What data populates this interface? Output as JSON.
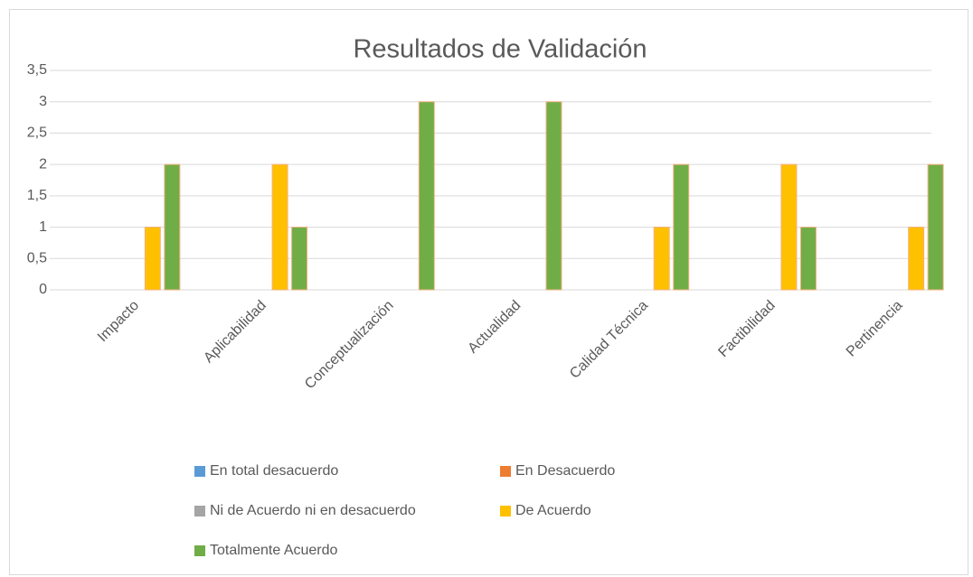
{
  "chart_data": {
    "type": "bar",
    "title": "Resultados de Validación",
    "categories": [
      "Impacto",
      "Aplicabilidad",
      "Conceptualización",
      "Actualidad",
      "Calidad Técnica",
      "Factibilidad",
      "Pertinencia"
    ],
    "series": [
      {
        "name": "En total desacuerdo",
        "color": "#5b9bd5",
        "values": [
          0,
          0,
          0,
          0,
          0,
          0,
          0
        ]
      },
      {
        "name": "En Desacuerdo",
        "color": "#ed7d31",
        "values": [
          0,
          0,
          0,
          0,
          0,
          0,
          0
        ]
      },
      {
        "name": "Ni de Acuerdo ni en desacuerdo",
        "color": "#a5a5a5",
        "values": [
          0,
          0,
          0,
          0,
          0,
          0,
          0
        ]
      },
      {
        "name": "De Acuerdo",
        "color": "#ffc000",
        "values": [
          1,
          2,
          0,
          0,
          1,
          2,
          1
        ]
      },
      {
        "name": "Totalmente Acuerdo",
        "color": "#70ad47",
        "values": [
          2,
          1,
          3,
          3,
          2,
          1,
          2
        ]
      }
    ],
    "ylim": [
      0,
      3.5
    ],
    "yticks": [
      0,
      {
        "value": 0.5,
        "label": "0,5"
      },
      1,
      {
        "value": 1.5,
        "label": "1,5"
      },
      2,
      {
        "value": 2.5,
        "label": "2,5"
      },
      3,
      {
        "value": 3.5,
        "label": "3,5"
      }
    ],
    "grid": true,
    "legend": "bottom"
  }
}
